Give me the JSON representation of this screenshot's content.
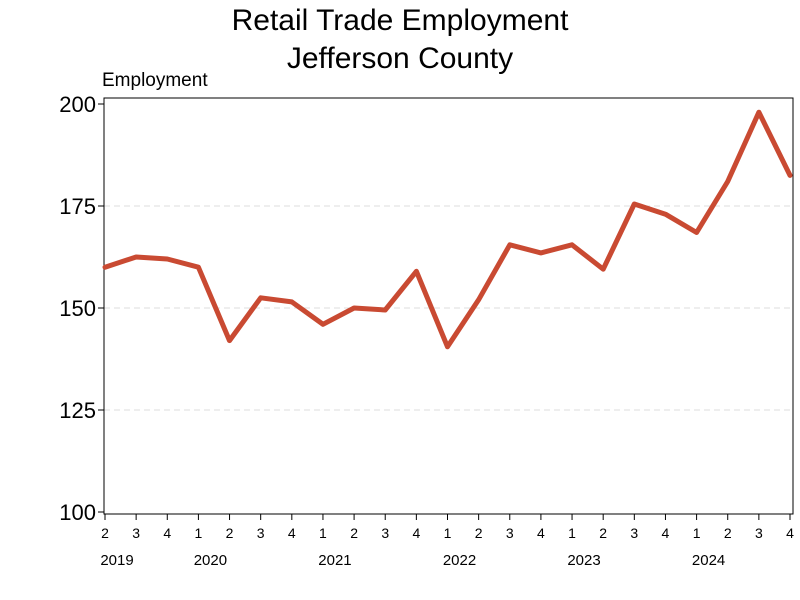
{
  "chart_data": {
    "type": "line",
    "title": [
      "Retail Trade Employment",
      "Jefferson County"
    ],
    "ylabel": "Employment",
    "ylim": [
      100,
      200
    ],
    "yticks": [
      100,
      125,
      150,
      175,
      200
    ],
    "grid": "horizontal dashed",
    "line_color": "#c94a32",
    "years": [
      {
        "label": "2019",
        "quarters": [
          "2",
          "3",
          "4"
        ]
      },
      {
        "label": "2020",
        "quarters": [
          "1",
          "2",
          "3",
          "4"
        ]
      },
      {
        "label": "2021",
        "quarters": [
          "1",
          "2",
          "3",
          "4"
        ]
      },
      {
        "label": "2022",
        "quarters": [
          "1",
          "2",
          "3",
          "4"
        ]
      },
      {
        "label": "2023",
        "quarters": [
          "1",
          "2",
          "3",
          "4"
        ]
      },
      {
        "label": "2024",
        "quarters": [
          "1",
          "2",
          "3",
          "4"
        ]
      }
    ],
    "values": [
      160,
      162.5,
      162,
      160,
      142,
      152.5,
      151.5,
      146,
      150,
      149.5,
      159,
      140.5,
      152,
      165.5,
      163.5,
      165.5,
      159.5,
      175.5,
      173,
      168.5,
      181,
      198,
      182.5
    ]
  }
}
